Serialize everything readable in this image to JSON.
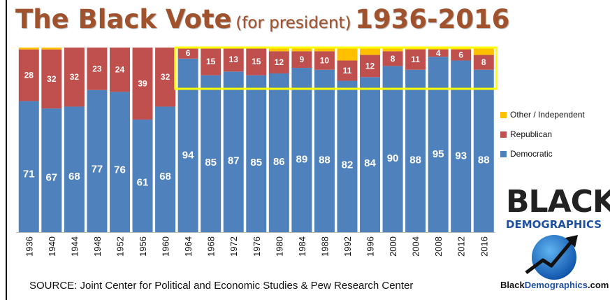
{
  "title": {
    "main": "The Black Vote",
    "sub": "(for president)",
    "years": "1936-2016"
  },
  "source": "SOURCE: Joint Center for Political and Economic Studies & Pew Research Center",
  "legend": [
    {
      "label": "Other / Independent",
      "color": "#ffc000"
    },
    {
      "label": "Republican",
      "color": "#c0504d"
    },
    {
      "label": "Democratic",
      "color": "#4f81bd"
    }
  ],
  "logo": {
    "line1": "BLACK",
    "line2": "DEMOGRAPHICS",
    "url_prefix": "Black",
    "url_accent": "Demographics",
    "url_suffix": ".com"
  },
  "chart_data": {
    "type": "bar",
    "stacked": true,
    "percent": true,
    "categories": [
      "1936",
      "1940",
      "1944",
      "1948",
      "1952",
      "1956",
      "1960",
      "1964",
      "1968",
      "1972",
      "1976",
      "1980",
      "1984",
      "1988",
      "1992",
      "1996",
      "2000",
      "2004",
      "2008",
      "2012",
      "2016"
    ],
    "series": [
      {
        "name": "Democratic",
        "color": "#4f81bd",
        "values": [
          71,
          67,
          68,
          77,
          76,
          61,
          68,
          94,
          85,
          87,
          85,
          86,
          89,
          88,
          82,
          84,
          90,
          88,
          95,
          93,
          88
        ]
      },
      {
        "name": "Republican",
        "color": "#c0504d",
        "values": [
          28,
          32,
          32,
          23,
          24,
          39,
          32,
          6,
          15,
          13,
          15,
          12,
          9,
          10,
          11,
          12,
          8,
          11,
          4,
          6,
          8
        ]
      },
      {
        "name": "Other / Independent",
        "color": "#ffc000",
        "values": [
          1,
          1,
          0,
          0,
          0,
          0,
          0,
          0,
          0,
          0,
          0,
          2,
          2,
          2,
          7,
          4,
          2,
          1,
          1,
          1,
          4
        ]
      }
    ],
    "highlight": {
      "from": "1964",
      "to": "2016",
      "color": "#ffff00"
    },
    "ylim": [
      0,
      100
    ],
    "grid": false,
    "legend_position": "right"
  }
}
